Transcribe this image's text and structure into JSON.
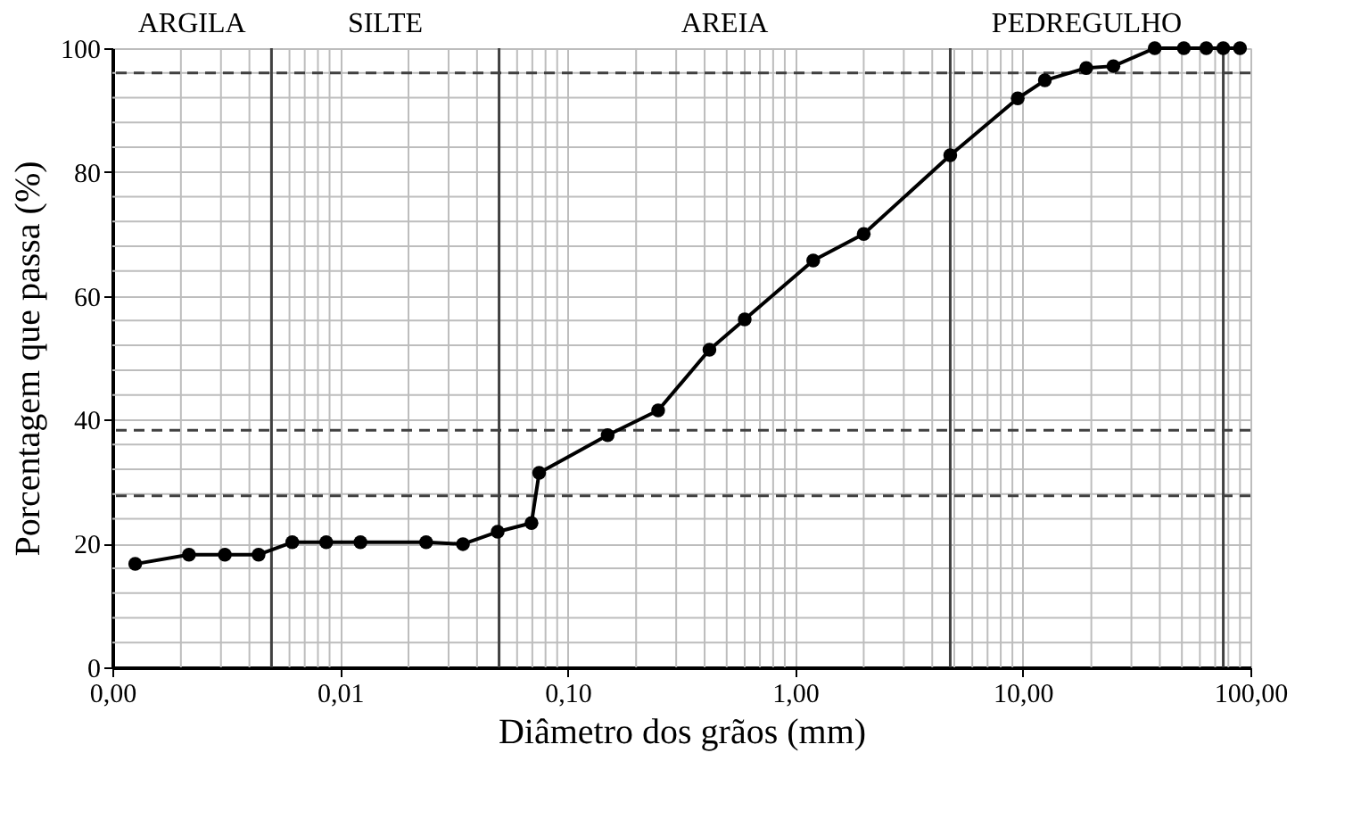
{
  "chart_data": {
    "type": "line",
    "xlabel": "Diâmetro dos grãos (mm)",
    "ylabel": "Porcentagem que passa (%)",
    "log": "x",
    "grid": true,
    "marker": "circle",
    "line_style": "solid",
    "xlim": [
      0.001,
      100
    ],
    "ylim": [
      0,
      100
    ],
    "xticks": [
      {
        "value": 0.001,
        "label": "0,00"
      },
      {
        "value": 0.01,
        "label": "0,01"
      },
      {
        "value": 0.1,
        "label": "0,10"
      },
      {
        "value": 1,
        "label": "1,00"
      },
      {
        "value": 10,
        "label": "10,00"
      },
      {
        "value": 100,
        "label": "100,00"
      }
    ],
    "yticks": [
      0,
      20,
      40,
      60,
      80,
      100
    ],
    "series": [
      {
        "color": "#000000",
        "x": [
          0.00126,
          0.00217,
          0.00312,
          0.00439,
          0.00617,
          0.0087,
          0.0123,
          0.0239,
          0.0347,
          0.0493,
          0.0694,
          0.075,
          0.15,
          0.25,
          0.42,
          0.6,
          1.2,
          2.0,
          4.8,
          9.5,
          12.5,
          19,
          25,
          38,
          51,
          64,
          76,
          90
        ],
        "values": [
          16.7,
          18.2,
          18.2,
          18.2,
          20.2,
          20.2,
          20.2,
          20.2,
          19.9,
          21.9,
          23.3,
          31.4,
          37.5,
          41.5,
          51.3,
          56.2,
          65.7,
          70.0,
          82.7,
          91.9,
          94.8,
          96.8,
          97.1,
          100,
          100,
          100,
          100,
          100
        ]
      }
    ],
    "ref_lines": [
      {
        "axis": "x",
        "value": 0.005,
        "color": "#404040",
        "line_style": "solid"
      },
      {
        "axis": "x",
        "value": 0.05,
        "color": "#404040",
        "line_style": "solid"
      },
      {
        "axis": "x",
        "value": 4.8,
        "color": "#404040",
        "line_style": "solid"
      },
      {
        "axis": "x",
        "value": 76,
        "color": "#404040",
        "line_style": "solid"
      },
      {
        "axis": "y",
        "value": 96,
        "color": "#404040",
        "line_style": "dashed"
      },
      {
        "axis": "y",
        "value": 38.3,
        "color": "#404040",
        "line_style": "dashed"
      },
      {
        "axis": "y",
        "value": 27.7,
        "color": "#404040",
        "line_style": "dashed"
      }
    ],
    "annotations": [
      "ARGILA",
      "SILTE",
      "AREIA",
      "PEDREGULHO"
    ]
  }
}
